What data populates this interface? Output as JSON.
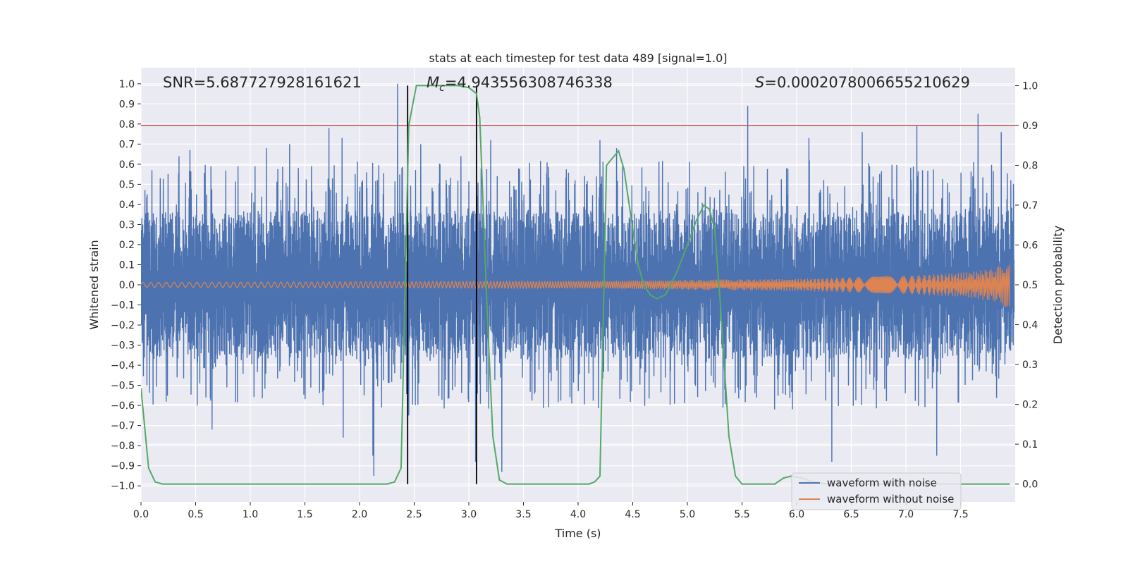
{
  "chart_data": {
    "type": "line",
    "title": "stats at each timestep for test data 489 [signal=1.0]",
    "xlabel": "Time (s)",
    "ylabel": "Whitened strain",
    "y2label": "Detection probability",
    "xlim": [
      0.0,
      8.0
    ],
    "ylim": [
      -1.08,
      1.08
    ],
    "y2lim": [
      -0.045,
      1.045
    ],
    "xticks": [
      0.0,
      0.5,
      1.0,
      1.5,
      2.0,
      2.5,
      3.0,
      3.5,
      4.0,
      4.5,
      5.0,
      5.5,
      6.0,
      6.5,
      7.0,
      7.5
    ],
    "xtick_labels": [
      "0.0",
      "0.5",
      "1.0",
      "1.5",
      "2.0",
      "2.5",
      "3.0",
      "3.5",
      "4.0",
      "4.5",
      "5.0",
      "5.5",
      "6.0",
      "6.5",
      "7.0",
      "7.5"
    ],
    "yticks": [
      1.0,
      0.9,
      0.8,
      0.7,
      0.6,
      0.5,
      0.4,
      0.3,
      0.2,
      0.1,
      0.0,
      -0.1,
      -0.2,
      -0.3,
      -0.4,
      -0.5,
      -0.6,
      -0.7,
      -0.8,
      -0.9,
      -1.0
    ],
    "ytick_labels": [
      "1.0",
      "0.9",
      "0.8",
      "0.7",
      "0.6",
      "0.5",
      "0.4",
      "0.3",
      "0.2",
      "0.1",
      "0.0",
      "−0.1",
      "−0.2",
      "−0.3",
      "−0.4",
      "−0.5",
      "−0.6",
      "−0.7",
      "−0.8",
      "−0.9",
      "−1.0"
    ],
    "y2ticks": [
      0.0,
      0.1,
      0.2,
      0.3,
      0.4,
      0.5,
      0.6,
      0.7,
      0.8,
      0.9,
      1.0
    ],
    "y2tick_labels": [
      "0.0",
      "0.1",
      "0.2",
      "0.3",
      "0.4",
      "0.5",
      "0.6",
      "0.7",
      "0.8",
      "0.9",
      "1.0"
    ],
    "annotations": {
      "snr": "SNR=5.687727928161621",
      "mc_symbol": "M",
      "mc_sub": "c",
      "mc_value": "=4.943556308746338",
      "s_symbol": "S",
      "s_value": "=0.0002078006655210629"
    },
    "threshold_line": {
      "y2": 0.9,
      "color": "#c44e52"
    },
    "vertical_lines": [
      2.44,
      3.07
    ],
    "series": [
      {
        "name": "waveform with noise",
        "color": "#4c72b0",
        "description": "dense noisy strain, roughly within -0.5..0.5 with spikes up to ~1.0 and down to ~-0.95",
        "peak_spikes": [
          {
            "x": 0.1,
            "y": 0.57
          },
          {
            "x": 0.35,
            "y": 0.64
          },
          {
            "x": 0.45,
            "y": 0.67
          },
          {
            "x": 1.15,
            "y": 0.68
          },
          {
            "x": 1.36,
            "y": 0.7
          },
          {
            "x": 1.72,
            "y": 0.78
          },
          {
            "x": 1.84,
            "y": 0.73
          },
          {
            "x": 2.35,
            "y": 1.0
          },
          {
            "x": 2.56,
            "y": 0.7
          },
          {
            "x": 2.93,
            "y": 0.64
          },
          {
            "x": 3.2,
            "y": 0.72
          },
          {
            "x": 4.2,
            "y": 0.72
          },
          {
            "x": 4.35,
            "y": 0.68
          },
          {
            "x": 5.55,
            "y": 0.89
          },
          {
            "x": 6.11,
            "y": 0.73
          },
          {
            "x": 6.6,
            "y": 0.76
          },
          {
            "x": 7.1,
            "y": 0.79
          },
          {
            "x": 7.66,
            "y": 0.85
          },
          {
            "x": 7.87,
            "y": 0.76
          }
        ],
        "trough_spikes": [
          {
            "x": 2.12,
            "y": -0.85
          },
          {
            "x": 2.13,
            "y": -0.95
          },
          {
            "x": 2.45,
            "y": -0.65
          },
          {
            "x": 3.3,
            "y": -0.93
          },
          {
            "x": 3.06,
            "y": -0.88
          },
          {
            "x": 6.32,
            "y": -0.88
          },
          {
            "x": 7.28,
            "y": -0.85
          },
          {
            "x": 1.85,
            "y": -0.76
          },
          {
            "x": 0.65,
            "y": -0.72
          }
        ]
      },
      {
        "name": "waveform without noise",
        "color": "#dd8452",
        "description": "chirp oscillation, amplitude grows from ~0.012 at t=0 to ~0.12 near t=7.95",
        "amplitude_envelope": [
          [
            0.0,
            0.012
          ],
          [
            4.0,
            0.018
          ],
          [
            6.0,
            0.03
          ],
          [
            7.0,
            0.045
          ],
          [
            7.5,
            0.06
          ],
          [
            7.8,
            0.08
          ],
          [
            7.95,
            0.12
          ]
        ]
      },
      {
        "name": "detection probability",
        "color": "#55a868",
        "axis": "right",
        "points": [
          [
            0.0,
            0.24
          ],
          [
            0.07,
            0.04
          ],
          [
            0.13,
            0.005
          ],
          [
            0.2,
            0.0
          ],
          [
            1.0,
            0.0
          ],
          [
            2.0,
            0.0
          ],
          [
            2.25,
            0.0
          ],
          [
            2.32,
            0.005
          ],
          [
            2.38,
            0.04
          ],
          [
            2.45,
            0.9
          ],
          [
            2.52,
            1.0
          ],
          [
            2.7,
            1.0
          ],
          [
            2.9,
            1.0
          ],
          [
            3.0,
            0.995
          ],
          [
            3.07,
            0.98
          ],
          [
            3.1,
            0.92
          ],
          [
            3.17,
            0.42
          ],
          [
            3.22,
            0.12
          ],
          [
            3.28,
            0.01
          ],
          [
            3.35,
            0.0
          ],
          [
            4.1,
            0.0
          ],
          [
            4.15,
            0.005
          ],
          [
            4.2,
            0.02
          ],
          [
            4.26,
            0.8
          ],
          [
            4.32,
            0.82
          ],
          [
            4.37,
            0.836
          ],
          [
            4.42,
            0.79
          ],
          [
            4.5,
            0.64
          ],
          [
            4.55,
            0.55
          ],
          [
            4.6,
            0.5
          ],
          [
            4.66,
            0.475
          ],
          [
            4.72,
            0.465
          ],
          [
            4.8,
            0.475
          ],
          [
            4.9,
            0.53
          ],
          [
            5.0,
            0.6
          ],
          [
            5.08,
            0.66
          ],
          [
            5.15,
            0.7
          ],
          [
            5.2,
            0.69
          ],
          [
            5.25,
            0.64
          ],
          [
            5.3,
            0.46
          ],
          [
            5.38,
            0.12
          ],
          [
            5.44,
            0.02
          ],
          [
            5.5,
            0.0
          ],
          [
            5.8,
            0.0
          ],
          [
            5.88,
            0.015
          ],
          [
            5.95,
            0.02
          ],
          [
            6.05,
            0.015
          ],
          [
            6.15,
            0.005
          ],
          [
            6.3,
            0.0
          ],
          [
            7.95,
            0.0
          ]
        ]
      }
    ],
    "legend": {
      "position": "lower-right",
      "entries": [
        {
          "label": "waveform with noise",
          "color": "#4c72b0"
        },
        {
          "label": "waveform without noise",
          "color": "#dd8452"
        }
      ]
    }
  }
}
